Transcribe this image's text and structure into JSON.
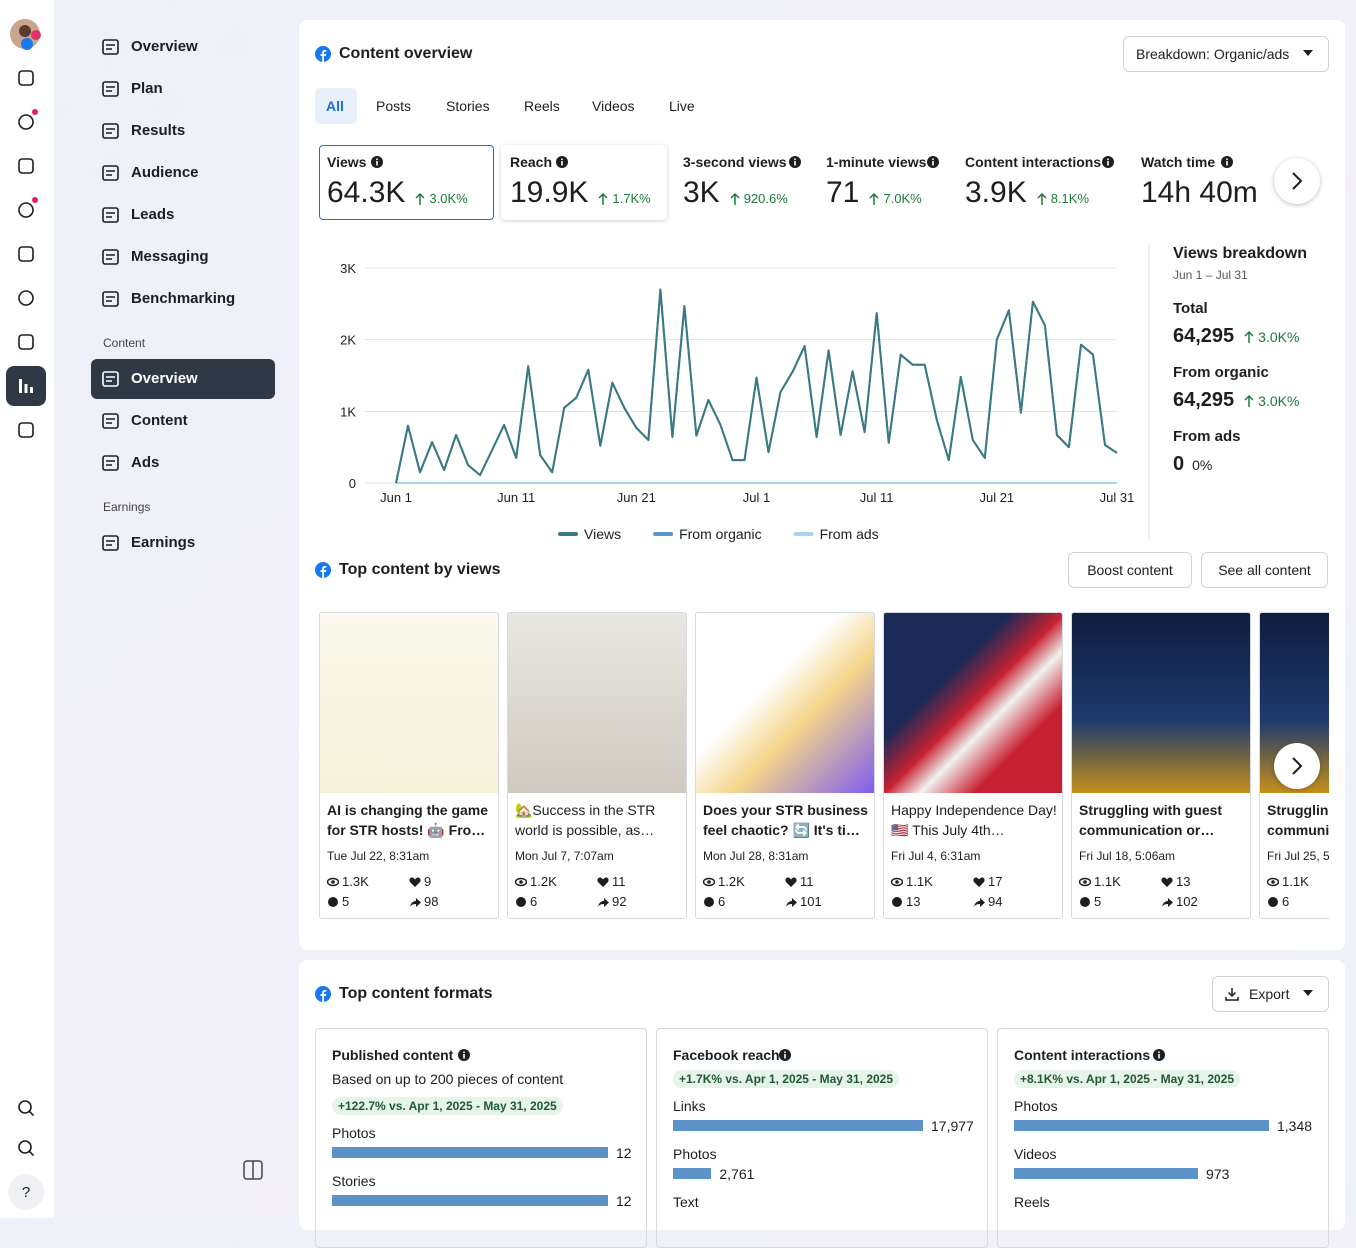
{
  "nav": {
    "items": [
      "Overview",
      "Plan",
      "Results",
      "Audience",
      "Leads",
      "Messaging",
      "Benchmarking"
    ],
    "content_section": "Content",
    "content_items": [
      "Overview",
      "Content",
      "Ads"
    ],
    "earnings_section": "Earnings",
    "earnings_items": [
      "Earnings"
    ]
  },
  "help": "?",
  "overview": {
    "title": "Content overview",
    "breakdown": "Breakdown: Organic/ads",
    "tabs": [
      "All",
      "Posts",
      "Stories",
      "Reels",
      "Videos",
      "Live"
    ],
    "metrics": [
      {
        "label": "Views",
        "value": "64.3K",
        "change": "3.0K%"
      },
      {
        "label": "Reach",
        "value": "19.9K",
        "change": "1.7K%"
      },
      {
        "label": "3-second views",
        "value": "3K",
        "change": "920.6%"
      },
      {
        "label": "1-minute views",
        "value": "71",
        "change": "7.0K%"
      },
      {
        "label": "Content interactions",
        "value": "3.9K",
        "change": "8.1K%"
      },
      {
        "label": "Watch time",
        "value": "14h 40m"
      }
    ],
    "breakdown_panel": {
      "title": "Views breakdown",
      "range": "Jun 1 – Jul 31",
      "rows": [
        {
          "label": "Total",
          "value": "64,295",
          "change": "3.0K%"
        },
        {
          "label": "From organic",
          "value": "64,295",
          "change": "3.0K%"
        },
        {
          "label": "From ads",
          "value": "0",
          "change": "0%"
        }
      ]
    }
  },
  "chart_data": {
    "type": "line",
    "categories": [
      "Jun 1",
      null,
      null,
      null,
      null,
      null,
      null,
      null,
      null,
      null,
      "Jun 11",
      null,
      null,
      null,
      null,
      null,
      null,
      null,
      null,
      null,
      "Jun 21",
      null,
      null,
      null,
      null,
      null,
      null,
      null,
      null,
      null,
      "Jul 1",
      null,
      null,
      null,
      null,
      null,
      null,
      null,
      null,
      null,
      "Jul 11",
      null,
      null,
      null,
      null,
      null,
      null,
      null,
      null,
      null,
      "Jul 21",
      null,
      null,
      null,
      null,
      null,
      null,
      null,
      null,
      null,
      "Jul 31"
    ],
    "series": [
      {
        "name": "From organic",
        "color": "#5b93c9",
        "values": [
          0,
          800,
          150,
          570,
          180,
          670,
          250,
          110,
          460,
          810,
          350,
          1630,
          390,
          150,
          1050,
          1190,
          1580,
          520,
          1400,
          1050,
          770,
          600,
          2700,
          640,
          2470,
          660,
          1160,
          810,
          320,
          320,
          1470,
          430,
          1270,
          1550,
          1910,
          640,
          1850,
          670,
          1560,
          710,
          2370,
          560,
          1790,
          1650,
          1650,
          880,
          320,
          1480,
          600,
          350,
          2000,
          2410,
          980,
          2530,
          2200,
          670,
          500,
          1930,
          1790,
          530,
          420
        ]
      },
      {
        "name": "From ads",
        "color": "#a8d4ee",
        "values": [
          0,
          0,
          0,
          0,
          0,
          0,
          0,
          0,
          0,
          0,
          0,
          0,
          0,
          0,
          0,
          0,
          0,
          0,
          0,
          0,
          0,
          0,
          0,
          0,
          0,
          0,
          0,
          0,
          0,
          0,
          0,
          0,
          0,
          0,
          0,
          0,
          0,
          0,
          0,
          0,
          0,
          0,
          0,
          0,
          0,
          0,
          0,
          0,
          0,
          0,
          0,
          0,
          0,
          0,
          0,
          0,
          0,
          0,
          0,
          0,
          0
        ]
      },
      {
        "name": "Views",
        "color": "#3a7a80",
        "values": [
          0,
          800,
          150,
          570,
          180,
          670,
          250,
          110,
          460,
          810,
          350,
          1630,
          390,
          150,
          1050,
          1190,
          1580,
          520,
          1400,
          1050,
          770,
          600,
          2700,
          640,
          2470,
          660,
          1160,
          810,
          320,
          320,
          1470,
          430,
          1270,
          1550,
          1910,
          640,
          1850,
          670,
          1560,
          710,
          2370,
          560,
          1790,
          1650,
          1650,
          880,
          320,
          1480,
          600,
          350,
          2000,
          2410,
          980,
          2530,
          2200,
          670,
          500,
          1930,
          1790,
          530,
          420
        ]
      }
    ],
    "legend_order": [
      "Views",
      "From organic",
      "From ads"
    ],
    "ylim": [
      0,
      3000
    ],
    "yticks": [
      0,
      {
        "value": 1000,
        "label": "1K"
      },
      {
        "value": 2000,
        "label": "2K"
      },
      {
        "value": 3000,
        "label": "3K"
      }
    ],
    "grid": true
  },
  "top_content": {
    "title": "Top content by views",
    "buttons": [
      "Boost content",
      "See all content"
    ],
    "posts": [
      {
        "title": "AI is changing the game for STR hosts! 🤖 Fro…",
        "date": "Tue Jul 22, 8:31am",
        "views": "1.3K",
        "likes": "9",
        "comments": "5",
        "shares": "98"
      },
      {
        "title": "🏡Success in the STR world is possible, as…",
        "date": "Mon Jul 7, 7:07am",
        "views": "1.2K",
        "likes": "11",
        "comments": "6",
        "shares": "92"
      },
      {
        "title": "Does your STR business feel chaotic? 🔄 It's ti…",
        "date": "Mon Jul 28, 8:31am",
        "views": "1.2K",
        "likes": "11",
        "comments": "6",
        "shares": "101"
      },
      {
        "title": "Happy Independence Day! 🇺🇸 This July 4th…",
        "date": "Fri Jul 4, 6:31am",
        "views": "1.1K",
        "likes": "17",
        "comments": "13",
        "shares": "94"
      },
      {
        "title": "Struggling with guest communication or…",
        "date": "Fri Jul 18, 5:06am",
        "views": "1.1K",
        "likes": "13",
        "comments": "5",
        "shares": "102"
      },
      {
        "title": "Struggling with guest communication or…",
        "date": "Fri Jul 25, 5",
        "views": "1.1K",
        "comments": "6"
      }
    ]
  },
  "formats": {
    "title": "Top content formats",
    "export": "Export",
    "cards": [
      {
        "title": "Published content",
        "subtitle": "Based on up to 200 pieces of content",
        "delta": "+122.7% vs. Apr 1, 2025 - May 31, 2025",
        "items": [
          {
            "label": "Photos",
            "value": 12
          },
          {
            "label": "Stories",
            "value": 12
          }
        ]
      },
      {
        "title": "Facebook reach",
        "delta": "+1.7K% vs. Apr 1, 2025 - May 31, 2025",
        "items": [
          {
            "label": "Links",
            "value": 17977,
            "value_label": "17,977"
          },
          {
            "label": "Photos",
            "value": 2761,
            "value_label": "2,761"
          },
          {
            "label": "Text"
          }
        ]
      },
      {
        "title": "Content interactions",
        "delta": "+8.1K% vs. Apr 1, 2025 - May 31, 2025",
        "items": [
          {
            "label": "Photos",
            "value": 1348,
            "value_label": "1,348"
          },
          {
            "label": "Videos",
            "value": 973,
            "value_label": "973"
          },
          {
            "label": "Reels"
          }
        ]
      }
    ]
  }
}
